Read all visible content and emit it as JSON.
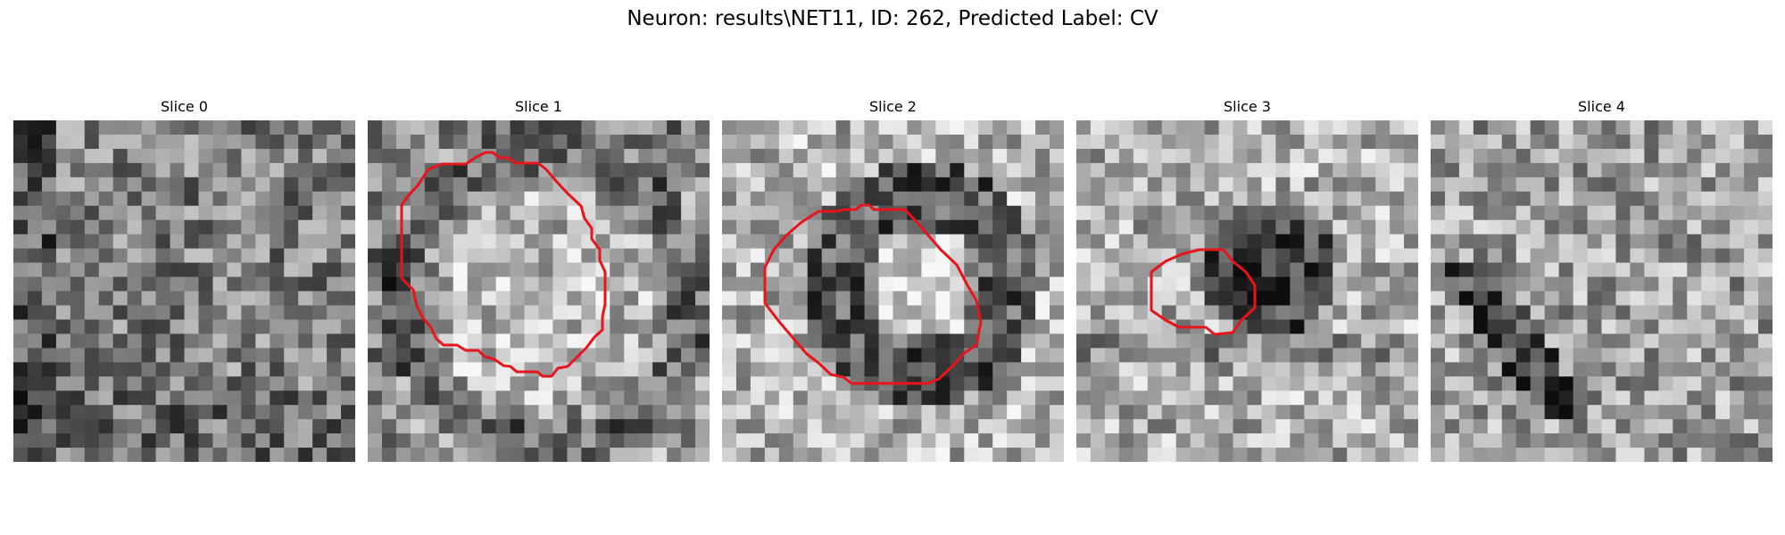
{
  "figure": {
    "title": "Neuron: results\\NET11, ID: 262, Predicted Label: CV"
  },
  "panels": [
    {
      "title": "Slice 0",
      "has_contour": false,
      "base_tone": 0.55,
      "pattern": "noise-dark-left"
    },
    {
      "title": "Slice 1",
      "has_contour": true,
      "base_tone": 0.6,
      "pattern": "bright-blob-dark-ring"
    },
    {
      "title": "Slice 2",
      "has_contour": true,
      "base_tone": 0.72,
      "pattern": "dark-ring-bright-center"
    },
    {
      "title": "Slice 3",
      "has_contour": true,
      "base_tone": 0.7,
      "pattern": "dark-center"
    },
    {
      "title": "Slice 4",
      "has_contour": false,
      "base_tone": 0.65,
      "pattern": "noise-dark-diagonal"
    }
  ],
  "colors": {
    "contour": "#e8141b",
    "background": "#ffffff"
  }
}
